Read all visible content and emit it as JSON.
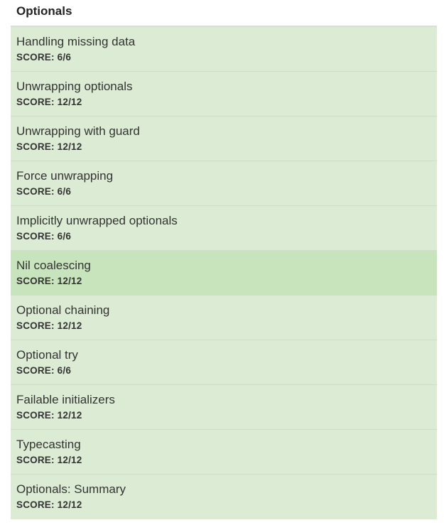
{
  "section": {
    "title": "Optionals"
  },
  "colors": {
    "item_background": "#dcecd4",
    "active_background": "#c8e4bc"
  },
  "items": [
    {
      "title": "Handling missing data",
      "score": "SCORE: 6/6"
    },
    {
      "title": "Unwrapping optionals",
      "score": "SCORE: 12/12"
    },
    {
      "title": "Unwrapping with guard",
      "score": "SCORE: 12/12"
    },
    {
      "title": "Force unwrapping",
      "score": "SCORE: 6/6"
    },
    {
      "title": "Implicitly unwrapped optionals",
      "score": "SCORE: 6/6"
    },
    {
      "title": "Nil coalescing",
      "score": "SCORE: 12/12"
    },
    {
      "title": "Optional chaining",
      "score": "SCORE: 12/12"
    },
    {
      "title": "Optional try",
      "score": "SCORE: 6/6"
    },
    {
      "title": "Failable initializers",
      "score": "SCORE: 12/12"
    },
    {
      "title": "Typecasting",
      "score": "SCORE: 12/12"
    },
    {
      "title": "Optionals: Summary",
      "score": "SCORE: 12/12"
    }
  ]
}
